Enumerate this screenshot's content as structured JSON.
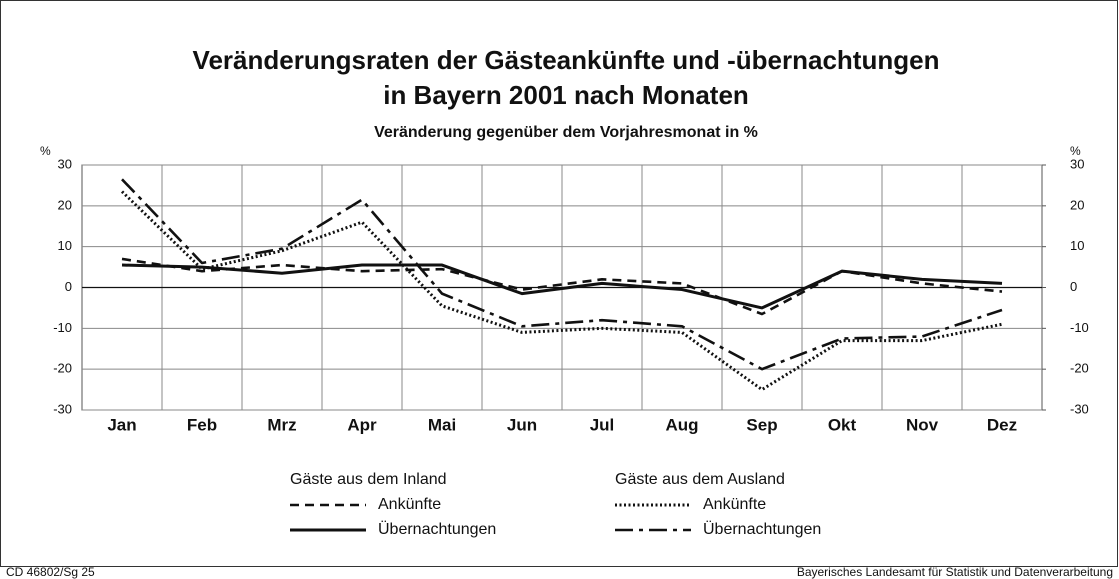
{
  "chart_data": {
    "type": "line",
    "title": [
      "Veränderungsraten der Gästeankünfte und -übernachtungen",
      "in Bayern 2001 nach Monaten"
    ],
    "subtitle": "Veränderung gegenüber dem Vorjahresmonat in %",
    "ylabel": "%",
    "y2label": "%",
    "categories": [
      "Jan",
      "Feb",
      "Mrz",
      "Apr",
      "Mai",
      "Jun",
      "Jul",
      "Aug",
      "Sep",
      "Okt",
      "Nov",
      "Dez"
    ],
    "ylim": [
      -30,
      30
    ],
    "yticks": [
      -30,
      -20,
      -10,
      0,
      10,
      20,
      30
    ],
    "y2lim": [
      -30,
      30
    ],
    "y2ticks": [
      -30,
      -20,
      -10,
      0,
      10,
      20,
      30
    ],
    "grid": true,
    "groups": [
      {
        "name": "Gäste aus dem Inland",
        "series": [
          {
            "name": "Ankünfte",
            "color": "#111111",
            "line_style": "dashed",
            "values": [
              7,
              4,
              5.5,
              4,
              4.5,
              -0.5,
              2,
              1,
              -6.5,
              4,
              1,
              -1
            ]
          },
          {
            "name": "Übernachtungen",
            "color": "#111111",
            "line_style": "solid",
            "values": [
              5.5,
              5,
              3.5,
              5.5,
              5.5,
              -1.5,
              1,
              -0.5,
              -5,
              4,
              2,
              1
            ]
          }
        ]
      },
      {
        "name": "Gäste aus dem Ausland",
        "series": [
          {
            "name": "Ankünfte",
            "color": "#111111",
            "line_style": "dotted",
            "values": [
              23.5,
              4.5,
              9,
              16,
              -4.5,
              -11,
              -10,
              -11,
              -25,
              -13,
              -13,
              -9
            ]
          },
          {
            "name": "Übernachtungen",
            "color": "#111111",
            "line_style": "dashdot",
            "values": [
              26.5,
              6,
              9.5,
              21.5,
              -1.5,
              -9.5,
              -8,
              -9.5,
              -20,
              -12.5,
              -12,
              -5.5
            ]
          }
        ]
      }
    ],
    "footer_left": "CD 46802/Sg 25",
    "footer_right": "Bayerisches Landesamt für Statistik und Datenverarbeitung"
  }
}
